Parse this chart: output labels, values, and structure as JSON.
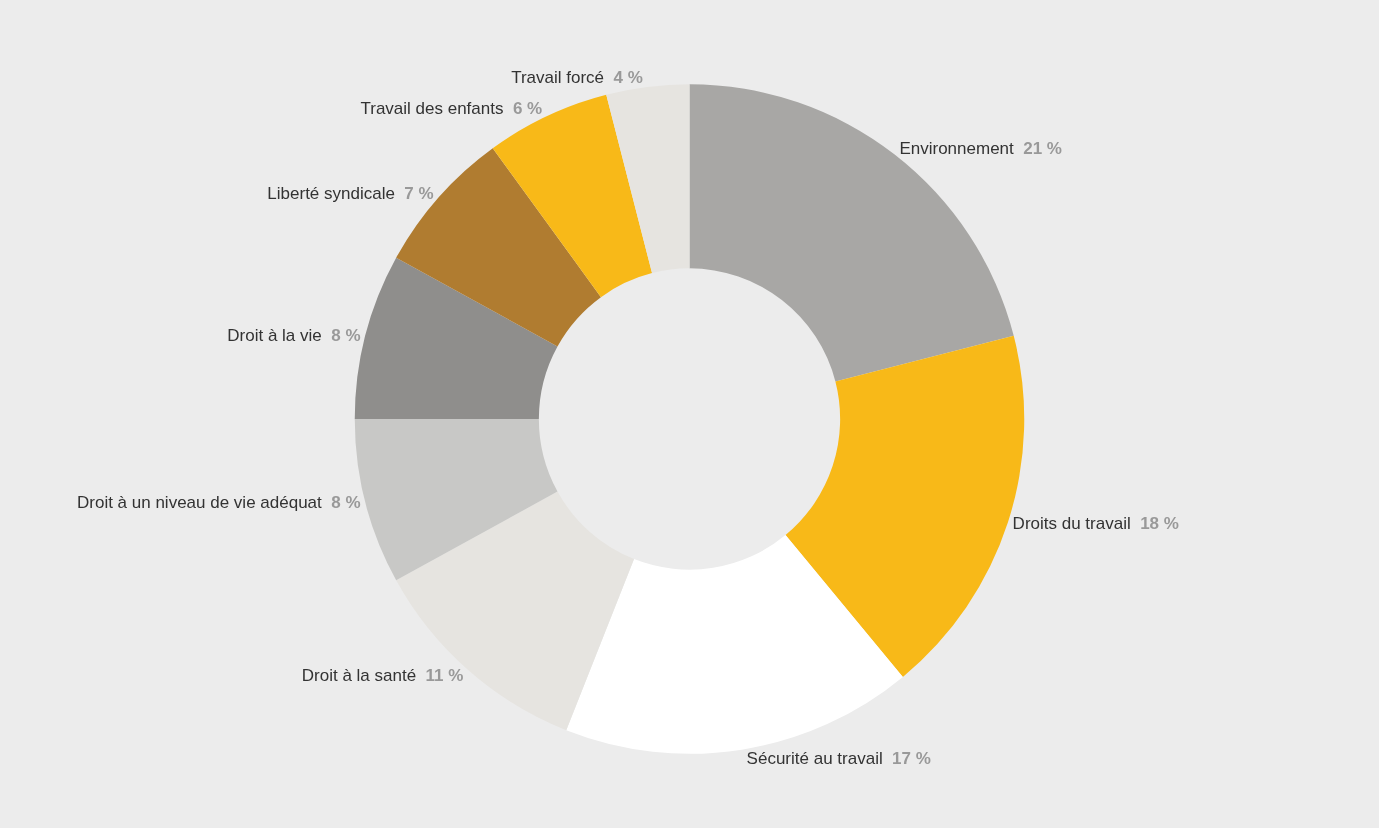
{
  "chart_data": {
    "type": "donut",
    "categories": [
      "Environnement",
      "Droits du travail",
      "Sécurité au travail",
      "Droit à la santé",
      "Droit à un niveau de vie adéquat",
      "Droit à la vie",
      "Liberté syndicale",
      "Travail des enfants",
      "Travail forcé"
    ],
    "values": [
      21,
      18,
      17,
      11,
      8,
      8,
      7,
      6,
      4
    ],
    "value_labels": [
      "21 %",
      "18 %",
      "17 %",
      "11 %",
      "8 %",
      "8 %",
      "7 %",
      "6 %",
      "4 %"
    ],
    "colors": [
      "#a8a7a5",
      "#f8b918",
      "#ffffff",
      "#e6e4e0",
      "#c8c8c6",
      "#8f8e8c",
      "#b07c30",
      "#f8b918",
      "#e6e4e0"
    ],
    "legend": false
  }
}
